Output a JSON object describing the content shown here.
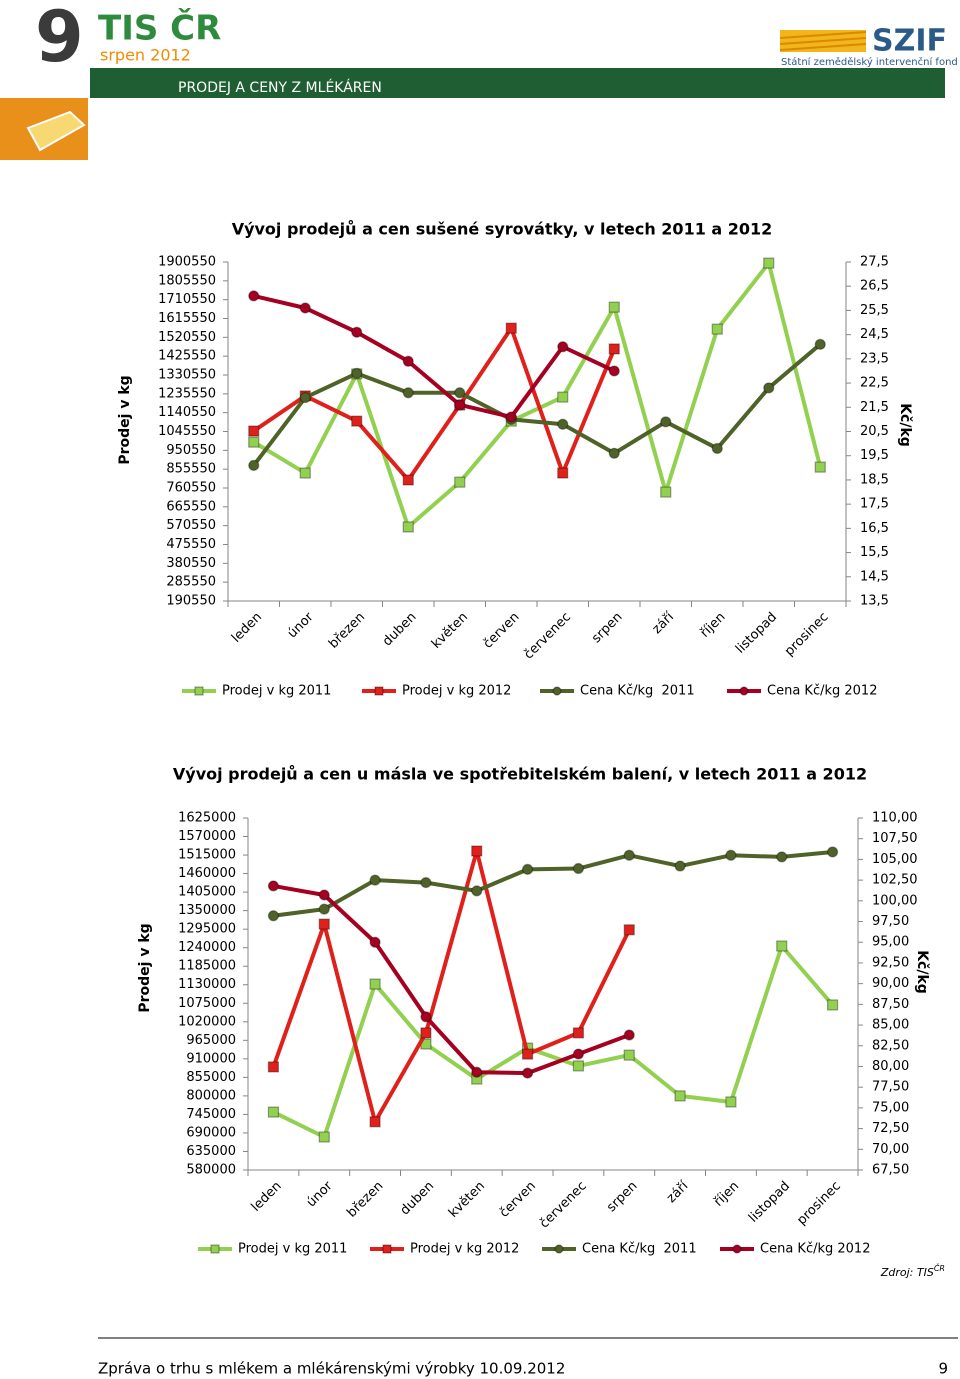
{
  "header": {
    "issue": "9",
    "brand": "TIS ČR",
    "date": "srpen 2012",
    "section": "PRODEJ A CENY Z MLÉKÁREN",
    "logo": "SZIF",
    "logo_subtitle": "Státní zemědělský intervenční fond"
  },
  "chart_data": [
    {
      "type": "line",
      "title": "Vývoj prodejů a cen sušené syrovátky, v letech 2011 a 2012",
      "y_label": "Prodej v kg",
      "y2_label": "Kč/kg",
      "categories": [
        "leden",
        "únor",
        "březen",
        "duben",
        "květen",
        "červen",
        "červenec",
        "srpen",
        "září",
        "říjen",
        "listopad",
        "prosinec"
      ],
      "ylim": [
        190550,
        1900550
      ],
      "yticks": [
        190550,
        285550,
        380550,
        475550,
        570550,
        665550,
        760550,
        855550,
        950550,
        1045550,
        1140550,
        1235550,
        1330550,
        1425550,
        1520550,
        1615550,
        1710550,
        1805550,
        1900550
      ],
      "y2lim": [
        13.5,
        27.5
      ],
      "y2ticks": [
        {
          "value": 13.5,
          "label": "13,5"
        },
        {
          "value": 14.5,
          "label": "14,5"
        },
        {
          "value": 15.5,
          "label": "15,5"
        },
        {
          "value": 16.5,
          "label": "16,5"
        },
        {
          "value": 17.5,
          "label": "17,5"
        },
        {
          "value": 18.5,
          "label": "18,5"
        },
        {
          "value": 19.5,
          "label": "19,5"
        },
        {
          "value": 20.5,
          "label": "20,5"
        },
        {
          "value": 21.5,
          "label": "21,5"
        },
        {
          "value": 22.5,
          "label": "22,5"
        },
        {
          "value": 23.5,
          "label": "23,5"
        },
        {
          "value": 24.5,
          "label": "24,5"
        },
        {
          "value": 25.5,
          "label": "25,5"
        },
        {
          "value": 26.5,
          "label": "26,5"
        },
        {
          "value": 27.5,
          "label": "27,5"
        }
      ],
      "legend": "bottom",
      "series": [
        {
          "name": "Prodej v kg 2011",
          "color": "#92d050",
          "marker": "square",
          "values": [
            992000,
            836000,
            1336000,
            564000,
            790000,
            1098000,
            1219000,
            1673000,
            740000,
            1562000,
            1895000,
            866000
          ]
        },
        {
          "name": "Prodej v kg 2012",
          "color": "#e0201b",
          "marker": "square",
          "values": [
            1048000,
            1225000,
            1098000,
            801000,
            1179000,
            1567000,
            836000,
            1462000,
            null,
            null,
            null,
            null
          ]
        },
        {
          "name": "Cena Kč/kg  2011",
          "color": "#4f6228",
          "marker": "circle",
          "axis": "y2",
          "values": [
            19.1,
            21.9,
            22.9,
            22.1,
            22.1,
            21.0,
            20.8,
            19.6,
            20.9,
            19.8,
            22.3,
            24.1
          ]
        },
        {
          "name": "Cena Kč/kg 2012",
          "color": "#a50021",
          "marker": "circle",
          "axis": "y2",
          "values": [
            26.1,
            25.6,
            24.6,
            23.4,
            21.6,
            21.1,
            24.0,
            23.0,
            null,
            null,
            null,
            null
          ]
        }
      ]
    },
    {
      "type": "line",
      "title": "Vývoj prodejů a cen u másla ve spotřebitelském balení, v letech 2011 a 2012",
      "y_label": "Prodej v kg",
      "y2_label": "Kč/kg",
      "categories": [
        "leden",
        "únor",
        "březen",
        "duben",
        "květen",
        "červen",
        "červenec",
        "srpen",
        "září",
        "říjen",
        "listopad",
        "prosinec"
      ],
      "ylim": [
        580000,
        1625000
      ],
      "yticks": [
        580000,
        635000,
        690000,
        745000,
        800000,
        855000,
        910000,
        965000,
        1020000,
        1075000,
        1130000,
        1185000,
        1240000,
        1295000,
        1350000,
        1405000,
        1460000,
        1515000,
        1570000,
        1625000
      ],
      "y2lim": [
        67.5,
        110
      ],
      "y2ticks": [
        {
          "value": 67.5,
          "label": "67,50"
        },
        {
          "value": 70,
          "label": "70,00"
        },
        {
          "value": 72.5,
          "label": "72,50"
        },
        {
          "value": 75,
          "label": "75,00"
        },
        {
          "value": 77.5,
          "label": "77,50"
        },
        {
          "value": 80,
          "label": "80,00"
        },
        {
          "value": 82.5,
          "label": "82,50"
        },
        {
          "value": 85,
          "label": "85,00"
        },
        {
          "value": 87.5,
          "label": "87,50"
        },
        {
          "value": 90,
          "label": "90,00"
        },
        {
          "value": 92.5,
          "label": "92,50"
        },
        {
          "value": 95,
          "label": "95,00"
        },
        {
          "value": 97.5,
          "label": "97,50"
        },
        {
          "value": 100,
          "label": "100,00"
        },
        {
          "value": 102.5,
          "label": "102,50"
        },
        {
          "value": 105,
          "label": "105,00"
        },
        {
          "value": 107.5,
          "label": "107,50"
        },
        {
          "value": 110,
          "label": "110,00"
        }
      ],
      "legend": "bottom",
      "series": [
        {
          "name": "Prodej v kg 2011",
          "color": "#92d050",
          "marker": "square",
          "values": [
            752000,
            678000,
            1132000,
            954000,
            850000,
            942000,
            889000,
            921000,
            800000,
            782000,
            1245000,
            1070000
          ]
        },
        {
          "name": "Prodej v kg 2012",
          "color": "#e0201b",
          "marker": "square",
          "values": [
            886000,
            1310000,
            723000,
            987000,
            1527000,
            924000,
            987000,
            1293000,
            null,
            null,
            null,
            null
          ]
        },
        {
          "name": "Cena Kč/kg  2011",
          "color": "#4f6228",
          "marker": "circle",
          "axis": "y2",
          "values": [
            98.2,
            99.0,
            102.5,
            102.2,
            101.2,
            103.8,
            103.9,
            105.5,
            104.2,
            105.5,
            105.3,
            105.9
          ]
        },
        {
          "name": "Cena Kč/kg 2012",
          "color": "#a50021",
          "marker": "circle",
          "axis": "y2",
          "values": [
            101.8,
            100.7,
            95.0,
            86.0,
            79.3,
            79.2,
            81.5,
            83.8,
            null,
            null,
            null,
            null
          ]
        }
      ]
    }
  ],
  "source": {
    "text": "Zdroj: TIS",
    "superscript": "ČR"
  },
  "footer": {
    "text": "Zpráva o trhu s mlékem a mlékárenskými výrobky 10.09.2012",
    "page": "9"
  }
}
